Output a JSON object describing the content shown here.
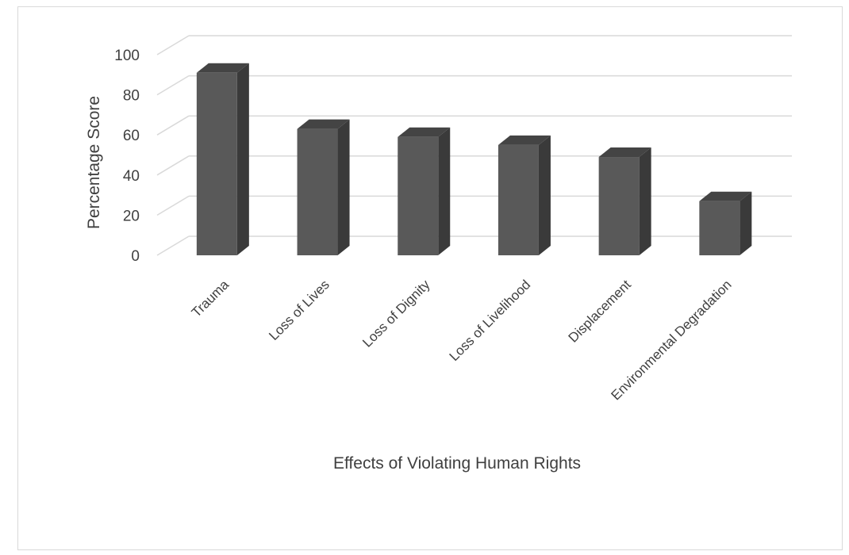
{
  "chart_data": {
    "type": "bar",
    "style": "3d-column",
    "categories": [
      "Trauma",
      "Loss of Lives",
      "Loss of Dignity",
      "Loss of Livelihood",
      "Displacement",
      "Environmental Degradation"
    ],
    "values": [
      91,
      63,
      59,
      55,
      49,
      27
    ],
    "xlabel": "Effects of Violating Human Rights",
    "ylabel": "Percentage Score",
    "ylim": [
      0,
      100
    ],
    "yticks": [
      0,
      20,
      40,
      60,
      80,
      100
    ],
    "grid": true,
    "legend": "none",
    "colors": {
      "bar_front": "#595959",
      "bar_side": "#3a3a3a",
      "bar_top": "#444444",
      "gridline": "#d9d9d9",
      "text": "#404040"
    }
  }
}
